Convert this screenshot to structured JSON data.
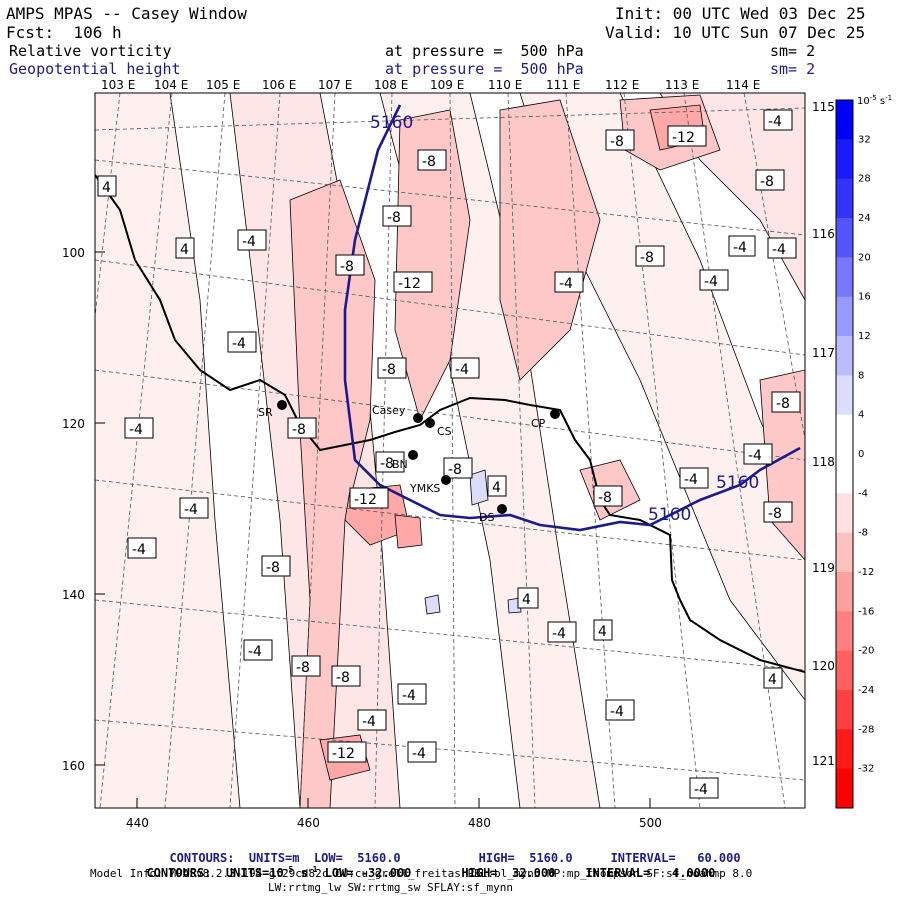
{
  "header": {
    "title": "AMPS MPAS -- Casey Window",
    "fcst": "Fcst:  106 h",
    "init": "Init: 00 UTC Wed 03 Dec 25",
    "valid": "Valid: 10 UTC Sun 07 Dec 25",
    "field1_name": "Relative vorticity",
    "field1_pressure": "at pressure =  500 hPa",
    "field1_sm": "sm= 2",
    "field2_name": "Geopotential height",
    "field2_pressure": "at pressure =  500 hPa",
    "field2_sm": "sm= 2"
  },
  "top_lon_labels": [
    "103 E",
    "104 E",
    "105 E",
    "106 E",
    "107 E",
    "108 E",
    "109 E",
    "110 E",
    "111 E",
    "112 E",
    "113 E",
    "114 E"
  ],
  "right_lon_labels": [
    "115 E",
    "116 E",
    "117 E",
    "118 E",
    "119 E",
    "120 E",
    "121 E"
  ],
  "x_axis": {
    "ticks": [
      "440",
      "460",
      "480",
      "500"
    ]
  },
  "y_axis": {
    "ticks": [
      "100",
      "120",
      "140",
      "160"
    ]
  },
  "colorbar": {
    "unit": "10",
    "unit_exp": "-5",
    "unit_suffix": "s",
    "unit_suffix_exp": "-1",
    "labels": [
      "32",
      "28",
      "24",
      "20",
      "16",
      "12",
      "8",
      "4",
      "0",
      "-4",
      "-8",
      "-12",
      "-16",
      "-20",
      "-24",
      "-28",
      "-32"
    ],
    "colors": [
      "#0000ff",
      "#1a1aff",
      "#3333ff",
      "#5555ff",
      "#7777ff",
      "#9999ff",
      "#bbbbff",
      "#dcdcff",
      "#ffffff",
      "#ffffff",
      "#ffe0e0",
      "#ffc0c0",
      "#ffa0a0",
      "#ff8080",
      "#ff6060",
      "#ff4040",
      "#ff1a1a",
      "#ff0000"
    ]
  },
  "height_labels": [
    "5160",
    "5160",
    "5160"
  ],
  "stations": [
    {
      "name": "SR"
    },
    {
      "name": "Casey"
    },
    {
      "name": "CS"
    },
    {
      "name": "BN"
    },
    {
      "name": "YMKS"
    },
    {
      "name": "DS"
    },
    {
      "name": "CP"
    }
  ],
  "contour_labels": [
    "-4",
    "-8",
    "-12",
    "4"
  ],
  "footer": {
    "line1_prefix": "CONTOURS:  UNITS=m  LOW=  5160.0",
    "line1_high": "HIGH=  5160.0",
    "line1_interval": "INTERVAL=   60.000",
    "line2_prefix": "CONTOURS:  UNITS=10",
    "line2_exp1": "-5",
    "line2_s": " s",
    "line2_exp2": "-1",
    "line2_low": " LOW= -32.000",
    "line2_high": "HIGH=  32.000",
    "line2_interval": "INTERVAL=   4.0000",
    "model_info": "Model Info: MPASv8.2.3-194-gf29cd82c CU:cu_grell_freitas PBL:bl_mynn MP:mp_thompson SF:sf_noahmp 8.0",
    "model_info2": "LW:rrtmg_lw SW:rrtmg_sw SFLAY:sf_mynn"
  },
  "colors": {
    "height_line": "#1b1b8f",
    "coast": "#000000"
  }
}
